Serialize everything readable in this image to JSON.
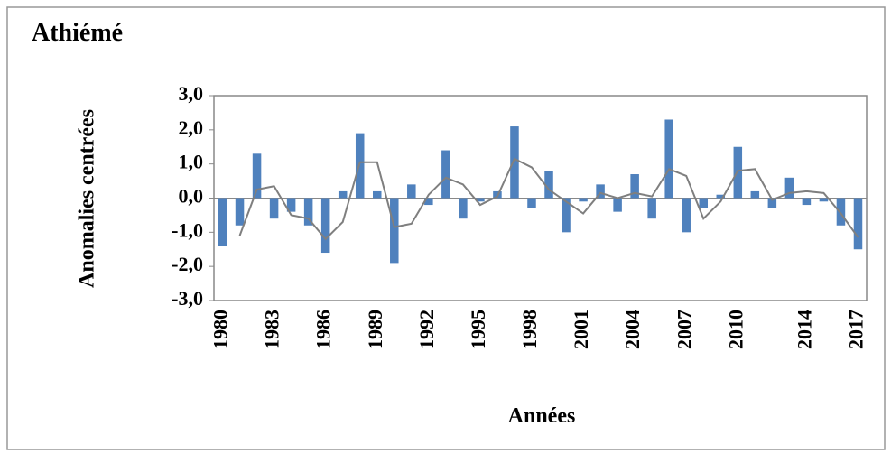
{
  "chart_data": {
    "type": "bar_line",
    "title": "Athiémé",
    "xlabel": "Années",
    "ylabel": "Anomalies centrées",
    "categories": [
      "1980",
      null,
      null,
      "1983",
      null,
      null,
      "1986",
      null,
      null,
      "1989",
      null,
      null,
      "1992",
      null,
      null,
      "1995",
      null,
      null,
      "1998",
      null,
      null,
      "2001",
      null,
      null,
      "2004",
      null,
      null,
      "2007",
      null,
      null,
      "2010",
      null,
      null,
      null,
      "2014",
      null,
      null,
      "2017"
    ],
    "series": [
      {
        "type": "bar",
        "color": "#4f81bd",
        "values": [
          -1.4,
          -0.8,
          1.3,
          -0.6,
          -0.4,
          -0.8,
          -1.6,
          0.2,
          1.9,
          0.2,
          -1.9,
          0.4,
          -0.2,
          1.4,
          -0.6,
          -0.1,
          0.2,
          2.1,
          -0.3,
          0.8,
          -1.0,
          -0.1,
          0.4,
          -0.4,
          0.7,
          -0.6,
          2.3,
          -1.0,
          -0.3,
          0.1,
          1.5,
          0.2,
          -0.3,
          0.6,
          -0.2,
          -0.1,
          -0.8,
          -1.5
        ]
      },
      {
        "type": "line",
        "color": "#7f7f7f",
        "values": [
          null,
          -1.1,
          0.25,
          0.35,
          -0.5,
          -0.6,
          -1.2,
          -0.7,
          1.05,
          1.05,
          -0.85,
          -0.75,
          0.1,
          0.6,
          0.4,
          -0.2,
          0.05,
          1.15,
          0.9,
          0.25,
          -0.1,
          -0.45,
          0.15,
          0.0,
          0.15,
          0.05,
          0.85,
          0.65,
          -0.6,
          -0.1,
          0.8,
          0.85,
          -0.05,
          0.15,
          0.2,
          0.15,
          -0.45,
          -1.15
        ]
      }
    ],
    "ylim": [
      -3,
      3
    ],
    "yticks": [
      {
        "value": 3,
        "label": "3,0"
      },
      {
        "value": 2,
        "label": "2,0"
      },
      {
        "value": 1,
        "label": "1,0"
      },
      {
        "value": 0,
        "label": "0,0"
      },
      {
        "value": -1,
        "label": "-1,0"
      },
      {
        "value": -2,
        "label": "-2,0"
      },
      {
        "value": -3,
        "label": "-3,0"
      }
    ]
  }
}
